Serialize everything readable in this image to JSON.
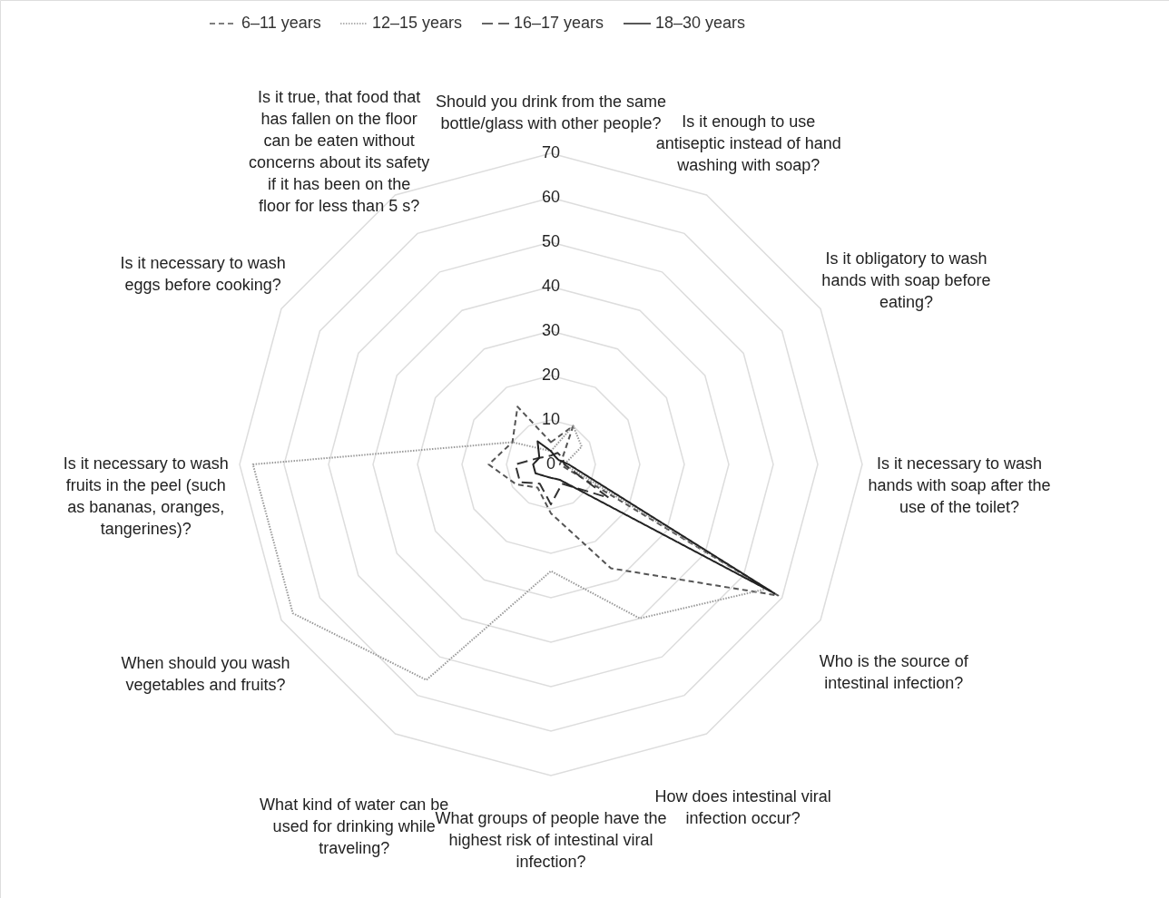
{
  "chart_data": {
    "type": "radar",
    "categories": [
      "Should you drink from the same bottle/glass with other people?",
      "Is it enough to use antiseptic instead of hand washing with soap?",
      "Is it obligatory to wash hands with soap before eating?",
      "Is it necessary to wash hands with soap after the use of the toilet?",
      "Who is the source of intestinal infection?",
      "How does intestinal viral infection occur?",
      "What groups of people have the highest risk of intestinal viral infection?",
      "What kind of water can be used for drinking while traveling?",
      "When should you wash vegetables and fruits?",
      "Is it necessary to wash fruits in the peel (such as bananas, oranges, tangerines)?",
      "Is it necessary to wash eggs before cooking?",
      "Is it true, that food that has fallen on the floor can be eaten without concerns about its safety if it has been on the floor for less than 5 s?"
    ],
    "ylim": [
      0,
      70
    ],
    "yticks": [
      0,
      10,
      20,
      30,
      40,
      50,
      60,
      70
    ],
    "legend": "top",
    "grid": true,
    "series": [
      {
        "name": "6–11 years",
        "color": "#555555",
        "line_style": "dashed",
        "values": [
          5,
          10,
          3,
          2,
          59,
          27,
          11,
          6,
          9,
          14,
          10,
          15
        ]
      },
      {
        "name": "12–15 years",
        "color": "#999999",
        "line_style": "dotted",
        "values": [
          3,
          10,
          8,
          3,
          56,
          40,
          24,
          56,
          67,
          67,
          10,
          4
        ]
      },
      {
        "name": "16–17 years",
        "color": "#333333",
        "line_style": "longdash",
        "values": [
          2,
          3,
          3,
          3,
          15,
          5,
          9,
          5,
          8,
          8,
          3,
          2
        ]
      },
      {
        "name": "18–30 years",
        "color": "#222222",
        "line_style": "solid",
        "values": [
          3,
          2,
          2,
          4,
          58,
          4,
          3,
          3,
          4,
          4,
          3,
          6
        ]
      }
    ]
  }
}
